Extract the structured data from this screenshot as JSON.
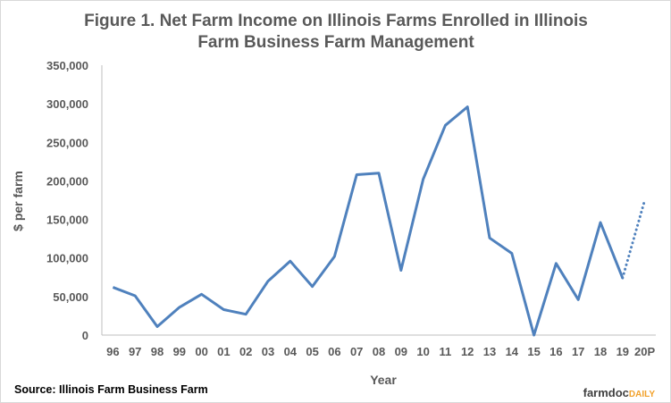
{
  "chart_data": {
    "type": "line",
    "title_lines": [
      "Figure 1.  Net Farm Income on Illinois Farms Enrolled in Illinois",
      "Farm Business Farm Management"
    ],
    "xlabel": "Year",
    "ylabel": "$ per farm",
    "ylim": [
      0,
      350000
    ],
    "yticks": [
      "0",
      "50,000",
      "100,000",
      "150,000",
      "200,000",
      "250,000",
      "300,000",
      "350,000"
    ],
    "categories": [
      "96",
      "97",
      "98",
      "99",
      "00",
      "01",
      "02",
      "03",
      "04",
      "05",
      "06",
      "07",
      "08",
      "09",
      "10",
      "11",
      "12",
      "13",
      "14",
      "15",
      "16",
      "17",
      "18",
      "19",
      "20P"
    ],
    "series": [
      {
        "values": [
          62000,
          51000,
          11000,
          36000,
          53000,
          33000,
          27000,
          70000,
          96000,
          63000,
          102000,
          208000,
          210000,
          84000,
          202000,
          272000,
          296000,
          126000,
          106000,
          0,
          93000,
          46000,
          146000,
          74000,
          null
        ],
        "color": "#4f81bd"
      },
      {
        "style": "dotted",
        "values": [
          null,
          null,
          null,
          null,
          null,
          null,
          null,
          null,
          null,
          null,
          null,
          null,
          null,
          null,
          null,
          null,
          null,
          null,
          null,
          null,
          null,
          null,
          null,
          74000,
          175000
        ],
        "color": "#4f81bd"
      }
    ],
    "grid": false,
    "legend": "none"
  },
  "source": "Source:  Illinois Farm Business  Farm",
  "branding": {
    "part1": "farmdoc",
    "part2": "DAILY",
    "color2": "#f2a12a"
  }
}
